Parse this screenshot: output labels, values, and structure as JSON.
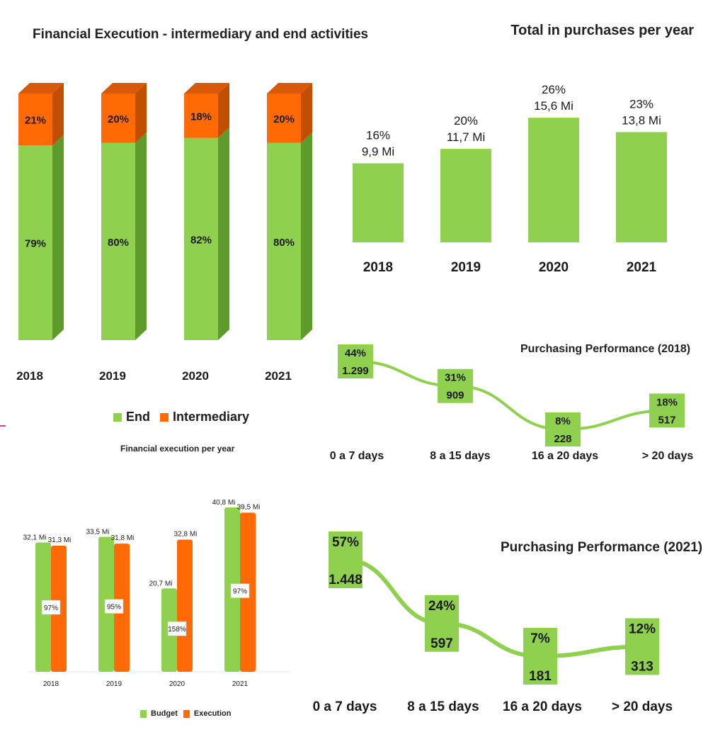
{
  "colors": {
    "green": "#8fd14f",
    "green_dark": "#5e9a2c",
    "green_top": "#7cbf3e",
    "orange": "#ff6a06",
    "orange_dark": "#c14f00",
    "orange_top": "#d9590a"
  },
  "chart_data": [
    {
      "id": "financial_execution",
      "type": "bar",
      "stacked": true,
      "title": "Financial Execution - intermediary and end activities",
      "categories": [
        "2018",
        "2019",
        "2020",
        "2021"
      ],
      "series": [
        {
          "name": "End",
          "values": [
            79,
            80,
            82,
            80
          ],
          "labels": [
            "79%",
            "80%",
            "82%",
            "80%"
          ]
        },
        {
          "name": "Intermediary",
          "values": [
            21,
            20,
            18,
            20
          ],
          "labels": [
            "21%",
            "20%",
            "18%",
            "20%"
          ]
        }
      ],
      "legend": "bottom"
    },
    {
      "id": "total_purchases",
      "type": "bar",
      "title": "Total in purchases per year",
      "categories": [
        "2018",
        "2019",
        "2020",
        "2021"
      ],
      "values": [
        9.9,
        11.7,
        15.6,
        13.8
      ],
      "labels": [
        "9,9 Mi",
        "11,7 Mi",
        "15,6 Mi",
        "13,8 Mi"
      ],
      "percent_labels": [
        "16%",
        "20%",
        "26%",
        "23%"
      ]
    },
    {
      "id": "perf_2018",
      "type": "line",
      "title": "Purchasing Performance (2018)",
      "categories": [
        "0 a 7 days",
        "8 a 15 days",
        "16 a 20 days",
        "> 20 days"
      ],
      "values": [
        44,
        31,
        8,
        18
      ],
      "percent_labels": [
        "44%",
        "31%",
        "8%",
        "18%"
      ],
      "count_labels": [
        "1.299",
        "909",
        "228",
        "517"
      ]
    },
    {
      "id": "budget_execution",
      "type": "bar",
      "title": "Financial execution per year",
      "categories": [
        "2018",
        "2019",
        "2020",
        "2021"
      ],
      "series": [
        {
          "name": "Budget",
          "values": [
            32.1,
            33.5,
            20.7,
            40.8
          ],
          "labels": [
            "32,1 Mi",
            "33,5 Mi",
            "20,7 Mi",
            "40,8 Mi"
          ]
        },
        {
          "name": "Execution",
          "values": [
            31.3,
            31.8,
            32.8,
            39.5
          ],
          "labels": [
            "31,3 Mi",
            "31,8 Mi",
            "32,8 Mi",
            "39,5 Mi"
          ]
        }
      ],
      "ratio_labels": [
        "97%",
        "95%",
        "158%",
        "97%"
      ],
      "legend": "bottom"
    },
    {
      "id": "perf_2021",
      "type": "line",
      "title": "Purchasing Performance (2021)",
      "categories": [
        "0 a 7 days",
        "8 a 15 days",
        "16 a 20 days",
        "> 20 days"
      ],
      "values": [
        57,
        24,
        7,
        12
      ],
      "percent_labels": [
        "57%",
        "24%",
        "7%",
        "12%"
      ],
      "count_labels": [
        "1.448",
        "597",
        "181",
        "313"
      ]
    }
  ]
}
